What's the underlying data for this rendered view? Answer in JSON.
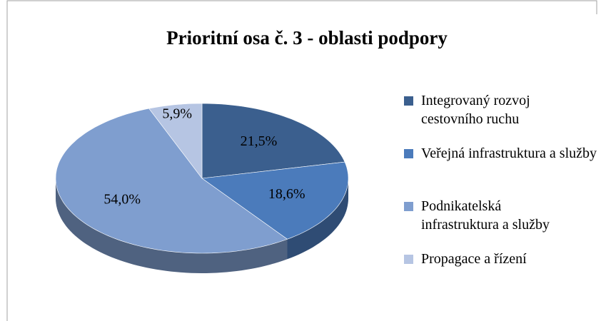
{
  "chart_data": {
    "type": "pie",
    "title": "Prioritní osa č. 3 - oblasti podpory",
    "categories": [
      "Integrovaný rozvoj cestovního ruchu",
      "Veřejná infrastruktura a služby",
      "Podnikatelská infrastruktura a služby",
      "Propagace a řízení"
    ],
    "values": [
      21.5,
      18.6,
      54.0,
      5.9
    ],
    "value_labels": [
      "21,5%",
      "18,6%",
      "54,0%",
      "5,9%"
    ],
    "colors": [
      "#3b5f8e",
      "#4b7bbb",
      "#7f9ecf",
      "#b6c5e3"
    ],
    "legend": "right"
  }
}
